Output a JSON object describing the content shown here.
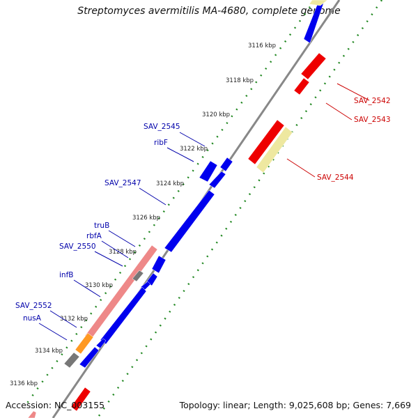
{
  "title": "Streptomyces avermitilis MA-4680, complete genome",
  "footer": {
    "accession": "Accession: NC_003155",
    "topology": "Topology: linear; Length: 9,025,608 bp; Genes: 7,669"
  },
  "colors": {
    "forward_gene": "#0000ee",
    "reverse_gene": "#ee0000",
    "rRNA_like_pink": "#ee8888",
    "pale_yellow": "#eee8a0",
    "orange": "#ff9922",
    "gray_gene": "#777777",
    "backbone": "#888888",
    "dot_track": "#228822",
    "forward_label": "#0000aa",
    "reverse_label": "#cc0000"
  },
  "ticks": [
    "3116 kbp",
    "3118 kbp",
    "3120 kbp",
    "3122 kbp",
    "3124 kbp",
    "3126 kbp",
    "3128 kbp",
    "3130 kbp",
    "3132 kbp",
    "3134 kbp",
    "3136 kbp"
  ],
  "forward_labels": [
    "SAV_2545",
    "ribF",
    "SAV_2547",
    "truB",
    "rbfA",
    "SAV_2550",
    "infB",
    "SAV_2552",
    "nusA"
  ],
  "reverse_labels": [
    "SAV_2542",
    "SAV_2543",
    "SAV_2544"
  ]
}
